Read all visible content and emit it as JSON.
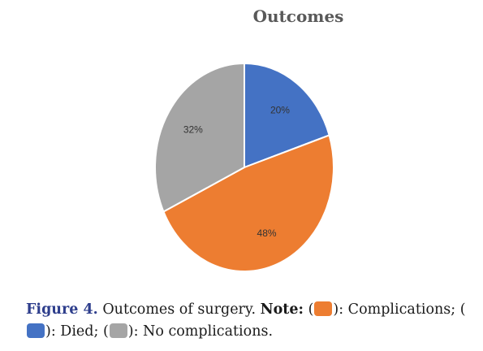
{
  "chart_data": {
    "type": "pie",
    "title": "Outcomes",
    "categories": [
      "Died",
      "Complications",
      "No complications"
    ],
    "values": [
      20,
      48,
      32
    ],
    "labels": [
      "20%",
      "48%",
      "32%"
    ],
    "colors": [
      "#4472c4",
      "#ed7d31",
      "#a5a5a5"
    ],
    "start_angle_deg": 0,
    "direction": "clockwise"
  },
  "caption": {
    "figure_label": "Figure 4.",
    "text": "Outcomes of surgery.",
    "note_label": "Note:",
    "complications_text": "): Complications;",
    "died_text": "): Died;",
    "no_complications_text": "): No complications."
  }
}
